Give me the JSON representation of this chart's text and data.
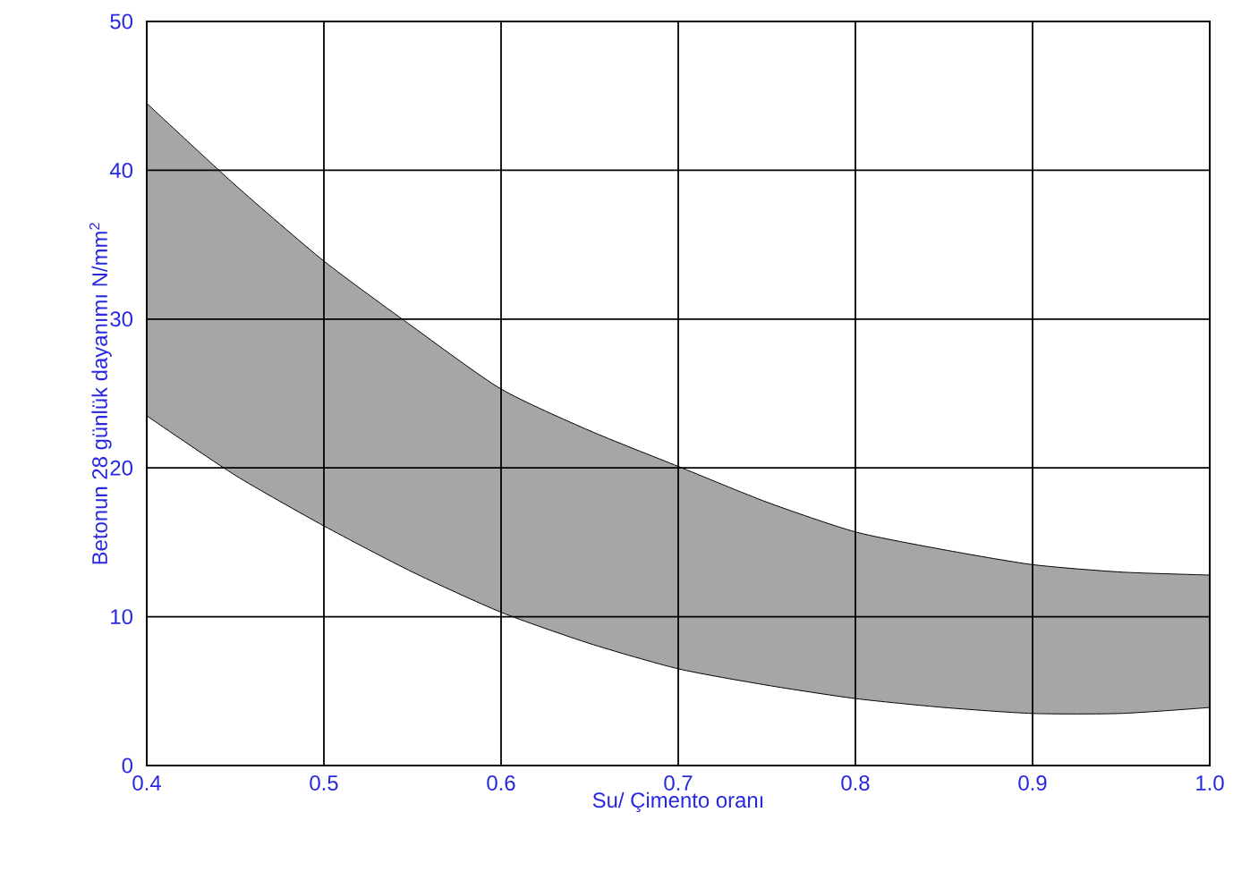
{
  "chart_data": {
    "type": "line",
    "xlabel": "Su/ Çimento oranı",
    "ylabel": "Betonun 28 günlük dayanımı N/mm$^{2}$",
    "x": [
      0.4,
      0.45,
      0.5,
      0.55,
      0.6,
      0.65,
      0.7,
      0.75,
      0.8,
      0.85,
      0.9,
      0.95,
      1.0
    ],
    "series": [
      {
        "color": "#000000",
        "values": [
          44.5,
          39,
          33.9,
          29.5,
          25.3,
          22.5,
          20.1,
          17.7,
          15.7,
          14.5,
          13.5,
          13.0,
          12.8
        ],
        "upper": [
          44.5,
          39,
          33.9,
          29.5,
          25.3,
          22.5,
          20.1,
          17.7,
          15.7,
          14.5,
          13.5,
          13.0,
          12.8
        ],
        "lower": [
          23.5,
          19.5,
          16.1,
          13,
          10.3,
          8.2,
          6.5,
          5.4,
          4.5,
          3.9,
          3.5,
          3.5,
          3.9
        ]
      },
      {
        "color": "#000000",
        "values": [
          23.5,
          19.5,
          16.1,
          13,
          10.3,
          8.2,
          6.5,
          5.4,
          4.5,
          3.9,
          3.5,
          3.5,
          3.9
        ]
      }
    ],
    "xlim": [
      0.4,
      1.0
    ],
    "ylim": [
      0,
      50
    ],
    "xticks": [
      0.4,
      0.5,
      0.6,
      0.7,
      0.8,
      0.9,
      {
        "value": 1.0,
        "label": "1.0"
      }
    ],
    "yticks": [
      0,
      10,
      20,
      30,
      40,
      50
    ],
    "grid": true
  }
}
